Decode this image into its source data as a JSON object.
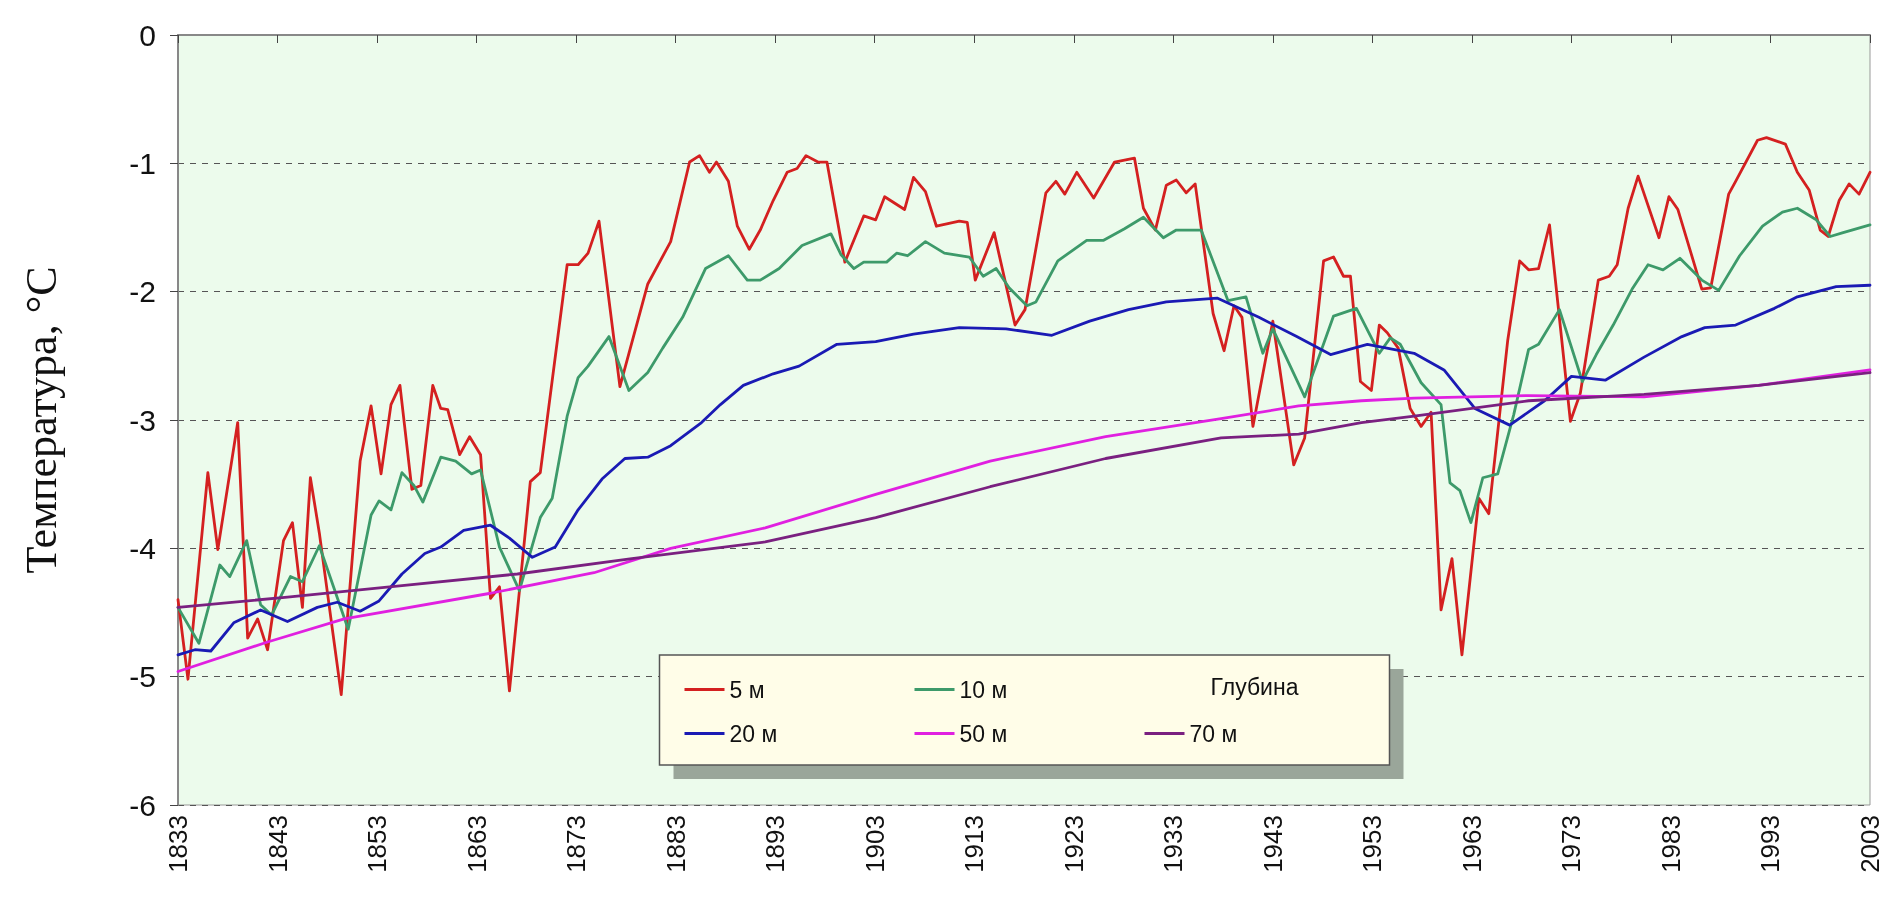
{
  "chart_data": {
    "type": "line",
    "ylabel": "Температура, °C",
    "legend_title": "Глубина",
    "legend": "bottom",
    "grid": "y",
    "marker": "none",
    "line_style": "solid",
    "xlim": [
      1833,
      2003
    ],
    "xticks": [
      1833,
      1843,
      1853,
      1863,
      1873,
      1883,
      1893,
      1903,
      1913,
      1923,
      1933,
      1943,
      1953,
      1963,
      1973,
      1983,
      1993,
      2003
    ],
    "ylim": [
      -6,
      0
    ],
    "yticks": [
      -6,
      -5,
      -4,
      -3,
      -2,
      -1,
      0
    ],
    "series": [
      {
        "name": "5 м",
        "color": "#d42020",
        "x": [
          1833,
          1834,
          1836,
          1837,
          1839,
          1840,
          1841,
          1842,
          1843.6,
          1844.5,
          1845.5,
          1846.3,
          1847.2,
          1849.4,
          1851.3,
          1852.4,
          1853.4,
          1854.4,
          1855.3,
          1856.5,
          1857.4,
          1858.6,
          1859.4,
          1860.1,
          1861.3,
          1862.3,
          1863.4,
          1864.4,
          1865.3,
          1866.3,
          1868.4,
          1869.4,
          1872.1,
          1873.2,
          1874.2,
          1875.3,
          1877.4,
          1880.2,
          1882.5,
          1884.4,
          1885.4,
          1886.4,
          1887.1,
          1888.3,
          1889.2,
          1890.4,
          1891.5,
          1892.8,
          1894.2,
          1895.2,
          1896.1,
          1897.3,
          1898.2,
          1900,
          1901.9,
          1903.1,
          1904,
          1906,
          1906.9,
          1908.1,
          1909.2,
          1911.5,
          1912.3,
          1913.1,
          1915,
          1917.1,
          1918.1,
          1920.2,
          1921.2,
          1922.1,
          1923.3,
          1925,
          1927.1,
          1929.1,
          1930,
          1931.2,
          1932.3,
          1933.3,
          1934.3,
          1935.2,
          1937,
          1938.1,
          1939.1,
          1939.9,
          1941,
          1943,
          1945.1,
          1946.2,
          1948.1,
          1949.1,
          1950.1,
          1950.8,
          1951.8,
          1952.9,
          1953.7,
          1954.5,
          1955.6,
          1956.8,
          1957.9,
          1958.9,
          1959.9,
          1961,
          1962,
          1963.7,
          1964.7,
          1966.6,
          1967.8,
          1968.7,
          1969.7,
          1970.8,
          1972.9,
          1973.9,
          1975.7,
          1976.8,
          1977.6,
          1978.7,
          1979.7,
          1981.8,
          1982.8,
          1983.7,
          1986.1,
          1987,
          1988.8,
          1989.5,
          1991.7,
          1992.6,
          1994.5,
          1995.7,
          1996.9,
          1998,
          1998.8,
          1999.9,
          2000.9,
          2001.9,
          2003
        ],
        "values": [
          -4.4,
          -5.02,
          -3.41,
          -4.01,
          -3.02,
          -4.7,
          -4.55,
          -4.79,
          -3.94,
          -3.8,
          -4.46,
          -3.45,
          -3.88,
          -5.14,
          -3.32,
          -2.89,
          -3.42,
          -2.88,
          -2.73,
          -3.54,
          -3.51,
          -2.73,
          -2.91,
          -2.92,
          -3.27,
          -3.13,
          -3.27,
          -4.39,
          -4.3,
          -5.11,
          -3.48,
          -3.41,
          -1.79,
          -1.79,
          -1.7,
          -1.45,
          -2.74,
          -1.94,
          -1.61,
          -0.99,
          -0.94,
          -1.07,
          -0.99,
          -1.14,
          -1.49,
          -1.67,
          -1.52,
          -1.29,
          -1.07,
          -1.04,
          -0.94,
          -0.99,
          -0.99,
          -1.77,
          -1.41,
          -1.44,
          -1.26,
          -1.36,
          -1.11,
          -1.22,
          -1.49,
          -1.45,
          -1.46,
          -1.91,
          -1.54,
          -2.26,
          -2.14,
          -1.23,
          -1.14,
          -1.24,
          -1.07,
          -1.27,
          -0.99,
          -0.96,
          -1.35,
          -1.52,
          -1.17,
          -1.13,
          -1.23,
          -1.16,
          -2.17,
          -2.46,
          -2.11,
          -2.2,
          -3.05,
          -2.23,
          -3.35,
          -3.14,
          -1.76,
          -1.73,
          -1.88,
          -1.88,
          -2.7,
          -2.77,
          -2.26,
          -2.32,
          -2.44,
          -2.91,
          -3.05,
          -2.94,
          -4.48,
          -4.08,
          -4.83,
          -3.61,
          -3.73,
          -2.38,
          -1.76,
          -1.83,
          -1.82,
          -1.48,
          -3.01,
          -2.79,
          -1.91,
          -1.88,
          -1.79,
          -1.35,
          -1.1,
          -1.58,
          -1.26,
          -1.36,
          -1.98,
          -1.97,
          -1.24,
          -1.14,
          -0.82,
          -0.8,
          -0.85,
          -1.07,
          -1.21,
          -1.52,
          -1.57,
          -1.29,
          -1.16,
          -1.24,
          -1.07
        ]
      },
      {
        "name": "10 м",
        "color": "#3d9a6a",
        "x": [
          1833,
          1835.1,
          1837.2,
          1838.2,
          1839.9,
          1841.3,
          1842.4,
          1844.3,
          1845.5,
          1847.2,
          1850.1,
          1852.4,
          1853.2,
          1854.4,
          1855.5,
          1856.7,
          1857.6,
          1859.4,
          1860.9,
          1862.5,
          1863.4,
          1865.3,
          1867.3,
          1869.4,
          1870.6,
          1872.1,
          1873.2,
          1874.2,
          1876.3,
          1878.3,
          1880.2,
          1881.7,
          1883.7,
          1886,
          1888.3,
          1890.2,
          1891.5,
          1893.4,
          1895.7,
          1898.6,
          1899.6,
          1900.9,
          1901.9,
          1904.2,
          1905.2,
          1906.3,
          1908.1,
          1910,
          1912.5,
          1913.9,
          1915.2,
          1916.5,
          1918.3,
          1919.2,
          1921.4,
          1924.3,
          1926,
          1928.1,
          1930,
          1932,
          1933.3,
          1935.8,
          1938.5,
          1940.3,
          1942,
          1943,
          1946.2,
          1949.1,
          1951.4,
          1953.7,
          1954.8,
          1955.8,
          1957.9,
          1959.9,
          1960.8,
          1961.8,
          1962.9,
          1964.1,
          1965.6,
          1967.2,
          1968.7,
          1969.7,
          1971.8,
          1974.1,
          1975.5,
          1977.2,
          1979.1,
          1980.7,
          1982.2,
          1983.9,
          1986.1,
          1987.8,
          1989.9,
          1992.2,
          1994.2,
          1995.7,
          1997.6,
          1999,
          2000.3,
          2003
        ],
        "values": [
          -4.46,
          -4.74,
          -4.13,
          -4.22,
          -3.94,
          -4.44,
          -4.52,
          -4.22,
          -4.26,
          -3.98,
          -4.63,
          -3.74,
          -3.63,
          -3.7,
          -3.41,
          -3.51,
          -3.64,
          -3.29,
          -3.32,
          -3.42,
          -3.39,
          -3.99,
          -4.33,
          -3.76,
          -3.61,
          -2.97,
          -2.67,
          -2.58,
          -2.35,
          -2.77,
          -2.63,
          -2.44,
          -2.2,
          -1.82,
          -1.72,
          -1.91,
          -1.91,
          -1.82,
          -1.64,
          -1.55,
          -1.71,
          -1.82,
          -1.77,
          -1.77,
          -1.7,
          -1.72,
          -1.61,
          -1.7,
          -1.73,
          -1.88,
          -1.82,
          -1.97,
          -2.11,
          -2.08,
          -1.76,
          -1.6,
          -1.6,
          -1.51,
          -1.42,
          -1.58,
          -1.52,
          -1.52,
          -2.07,
          -2.04,
          -2.48,
          -2.29,
          -2.82,
          -2.19,
          -2.13,
          -2.48,
          -2.36,
          -2.41,
          -2.71,
          -2.88,
          -3.49,
          -3.55,
          -3.8,
          -3.45,
          -3.42,
          -2.96,
          -2.45,
          -2.41,
          -2.14,
          -2.7,
          -2.49,
          -2.26,
          -1.98,
          -1.79,
          -1.83,
          -1.74,
          -1.91,
          -1.99,
          -1.72,
          -1.49,
          -1.38,
          -1.35,
          -1.44,
          -1.57,
          -1.54,
          -1.48
        ]
      },
      {
        "name": "20 м",
        "color": "#1a1ab4",
        "x": [
          1833,
          1834.7,
          1836.3,
          1838.6,
          1841.3,
          1844,
          1847,
          1849,
          1851.3,
          1853.2,
          1855.5,
          1857.8,
          1859.4,
          1861.7,
          1864.4,
          1866.3,
          1868.6,
          1870.9,
          1873.2,
          1875.6,
          1877.9,
          1880.2,
          1882.5,
          1885.6,
          1887.5,
          1889.8,
          1892.8,
          1895.4,
          1899.2,
          1903.1,
          1906.9,
          1911.5,
          1916.2,
          1920.8,
          1924.6,
          1928.5,
          1932.3,
          1937.4,
          1941.6,
          1945.4,
          1948.8,
          1952.5,
          1957.2,
          1960.2,
          1963.3,
          1966.8,
          1970.3,
          1973,
          1976.4,
          1980.3,
          1984.1,
          1986.4,
          1989.5,
          1993.4,
          1995.7,
          1999.6,
          2003
        ],
        "values": [
          -4.83,
          -4.79,
          -4.8,
          -4.58,
          -4.48,
          -4.57,
          -4.46,
          -4.42,
          -4.49,
          -4.41,
          -4.2,
          -4.04,
          -3.99,
          -3.86,
          -3.82,
          -3.92,
          -4.07,
          -3.99,
          -3.7,
          -3.46,
          -3.3,
          -3.29,
          -3.2,
          -3.02,
          -2.88,
          -2.73,
          -2.64,
          -2.58,
          -2.41,
          -2.39,
          -2.33,
          -2.28,
          -2.29,
          -2.34,
          -2.23,
          -2.14,
          -2.08,
          -2.05,
          -2.2,
          -2.35,
          -2.49,
          -2.41,
          -2.48,
          -2.61,
          -2.91,
          -3.04,
          -2.85,
          -2.66,
          -2.69,
          -2.51,
          -2.35,
          -2.28,
          -2.26,
          -2.13,
          -2.04,
          -1.96,
          -1.95
        ]
      },
      {
        "name": "50 м",
        "color": "#e020e0",
        "x": [
          1833,
          1842,
          1849.7,
          1864.4,
          1874.8,
          1882.5,
          1892,
          1903.1,
          1914.6,
          1926.2,
          1937.8,
          1945.6,
          1951.9,
          1957.2,
          1968.7,
          1980.3,
          1991.8,
          2003
        ],
        "values": [
          -4.96,
          -4.73,
          -4.55,
          -4.35,
          -4.19,
          -4,
          -3.84,
          -3.58,
          -3.32,
          -3.13,
          -2.99,
          -2.89,
          -2.85,
          -2.83,
          -2.81,
          -2.82,
          -2.73,
          -2.61
        ]
      },
      {
        "name": "70 м",
        "color": "#7a2080",
        "x": [
          1833,
          1844,
          1855.5,
          1867.1,
          1878.6,
          1892,
          1903.1,
          1914.6,
          1926.2,
          1937.8,
          1945.6,
          1951.9,
          1957.2,
          1968.7,
          1980.3,
          1991.8,
          2003
        ],
        "values": [
          -4.46,
          -4.38,
          -4.29,
          -4.2,
          -4.08,
          -3.95,
          -3.76,
          -3.52,
          -3.3,
          -3.14,
          -3.11,
          -3.02,
          -2.97,
          -2.85,
          -2.8,
          -2.73,
          -2.63
        ]
      }
    ]
  }
}
